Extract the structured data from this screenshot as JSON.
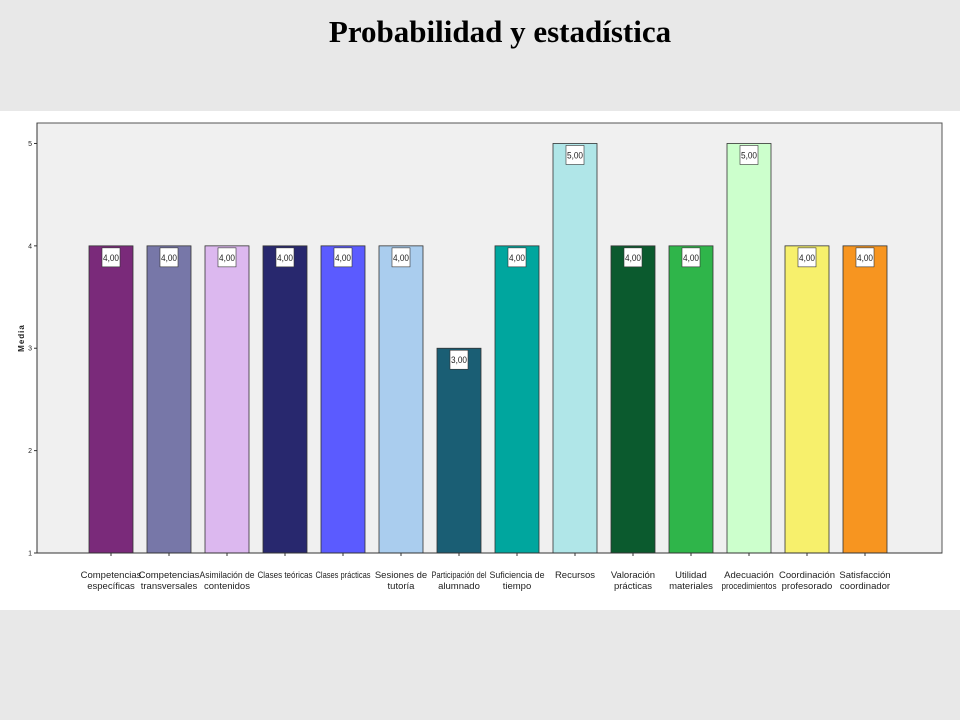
{
  "slide": {
    "title": "Probabilidad y estadística"
  },
  "chart_data": {
    "type": "bar",
    "title": "",
    "xlabel": "",
    "ylabel": "Media",
    "ylim": [
      1,
      5.2
    ],
    "yticks": [
      "1",
      "2",
      "3",
      "4",
      "5"
    ],
    "grid": false,
    "categories": [
      [
        "Competencias",
        "específicas"
      ],
      [
        "Competencias",
        "transversales"
      ],
      [
        "Asimilación de",
        "contenidos"
      ],
      [
        "Clases teóricas"
      ],
      [
        "Clases prácticas"
      ],
      [
        "Sesiones de",
        "tutoría"
      ],
      [
        "Participación del",
        "alumnado"
      ],
      [
        "Suficiencia de",
        "tiempo"
      ],
      [
        "Recursos"
      ],
      [
        "Valoración",
        "prácticas"
      ],
      [
        "Utilidad",
        "materiales"
      ],
      [
        "Adecuación",
        "procedimientos"
      ],
      [
        "Coordinación",
        "profesorado"
      ],
      [
        "Satisfacción",
        "coordinador"
      ]
    ],
    "values": [
      4,
      4,
      4,
      4,
      4,
      4,
      3,
      4,
      5,
      4,
      4,
      5,
      4,
      4
    ],
    "data_labels": [
      "4,00",
      "4,00",
      "4,00",
      "4,00",
      "4,00",
      "4,00",
      "3,00",
      "4,00",
      "5,00",
      "4,00",
      "4,00",
      "5,00",
      "4,00",
      "4,00"
    ],
    "colors": [
      "#7a2a7a",
      "#7777a8",
      "#dcb8ef",
      "#28286e",
      "#5b5bff",
      "#aacdee",
      "#1a5e74",
      "#00a69e",
      "#b0e6e8",
      "#0b5a2e",
      "#2fb54a",
      "#ccffcc",
      "#f7f06c",
      "#f79520"
    ],
    "plot_background": "#f0f0f0"
  }
}
